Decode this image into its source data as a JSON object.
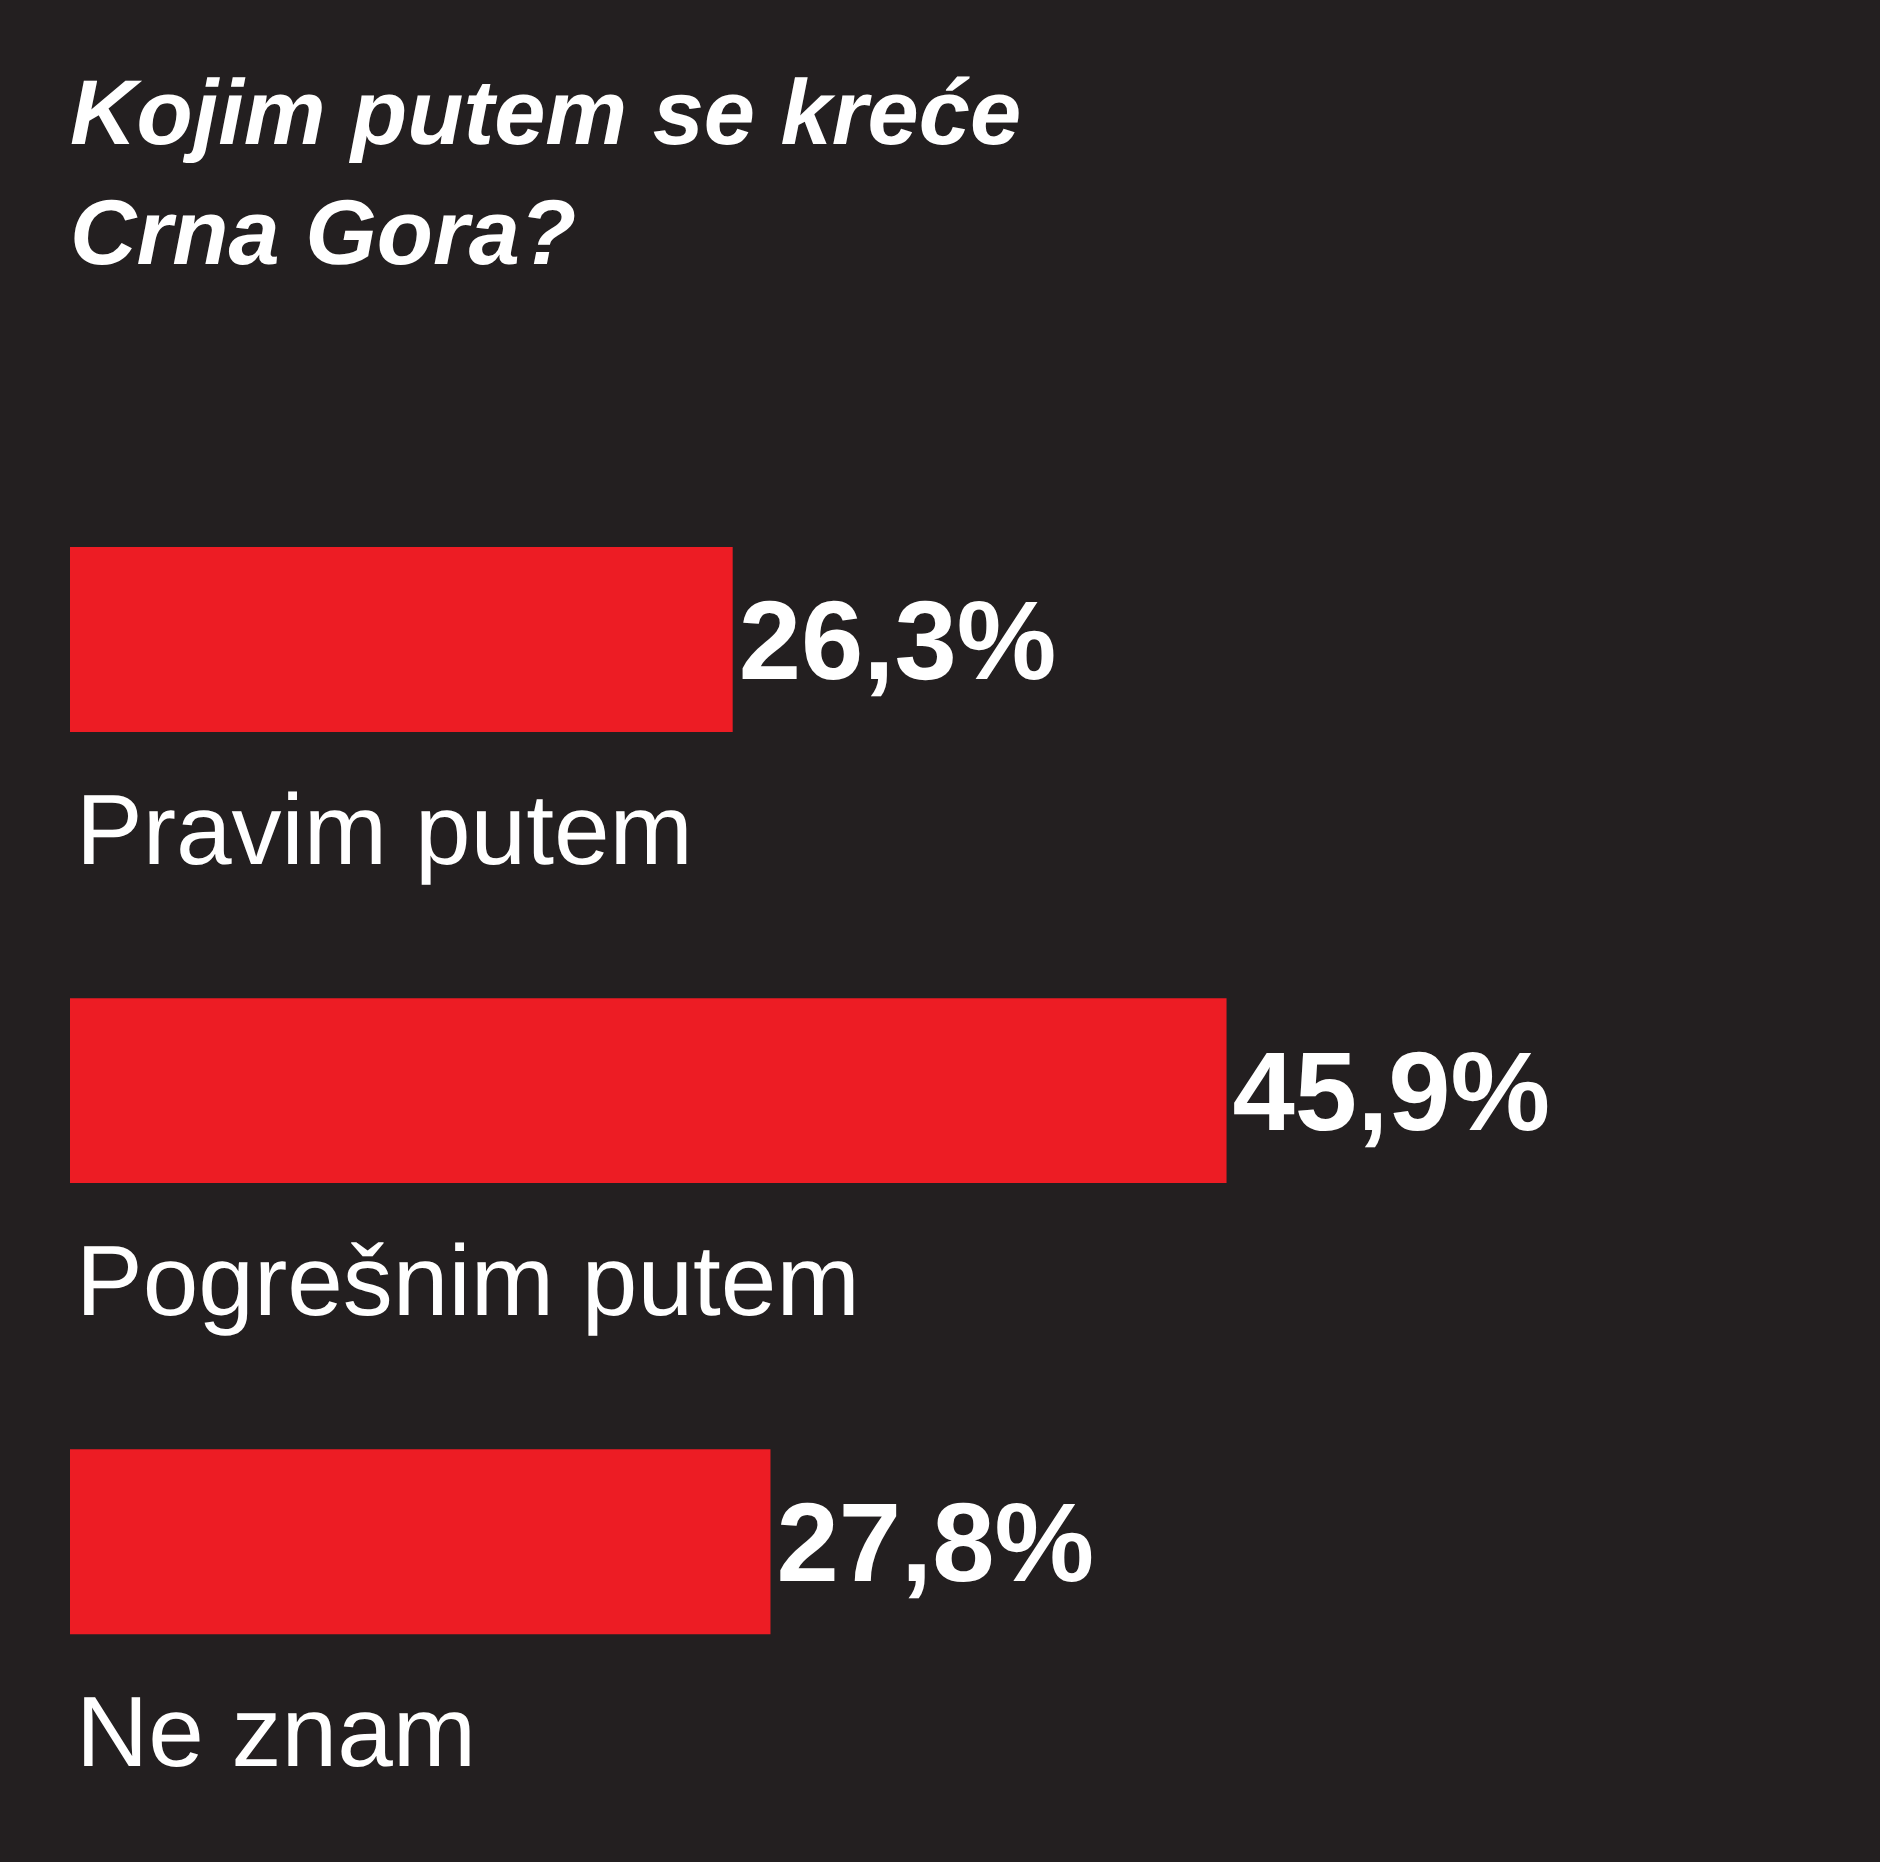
{
  "chart_data": {
    "type": "bar",
    "orientation": "horizontal",
    "title": "Kojim putem se kreće Crna Gora?",
    "categories": [
      "Pravim putem",
      "Pogrešnim putem",
      "Ne znam"
    ],
    "values": [
      26.3,
      45.9,
      27.8
    ],
    "value_labels": [
      "26,3%",
      "45,9%",
      "27,8%"
    ],
    "color": "#ed1c24"
  }
}
